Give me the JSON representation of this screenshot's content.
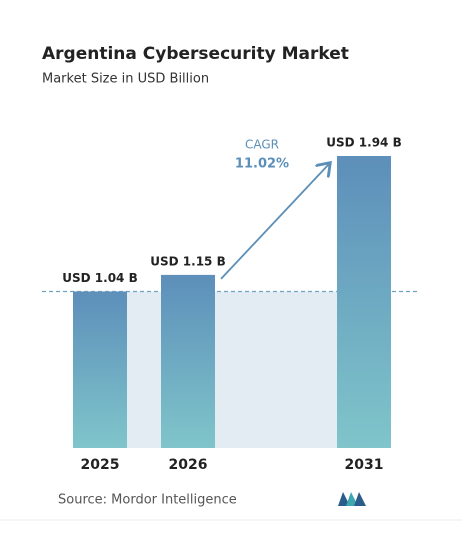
{
  "chart_data": {
    "type": "bar",
    "title": "Argentina Cybersecurity Market",
    "subtitle": "Market Size in USD Billion",
    "categories": [
      "2025",
      "2026",
      "2031"
    ],
    "values": [
      1.04,
      1.15,
      1.94
    ],
    "value_labels": [
      "USD 1.04 B",
      "USD 1.15 B",
      "USD 1.94 B"
    ],
    "cagr_label": "CAGR",
    "cagr_value": "11.02%",
    "source": "Source:  Mordor Intelligence",
    "color": "#6a9fc0"
  }
}
